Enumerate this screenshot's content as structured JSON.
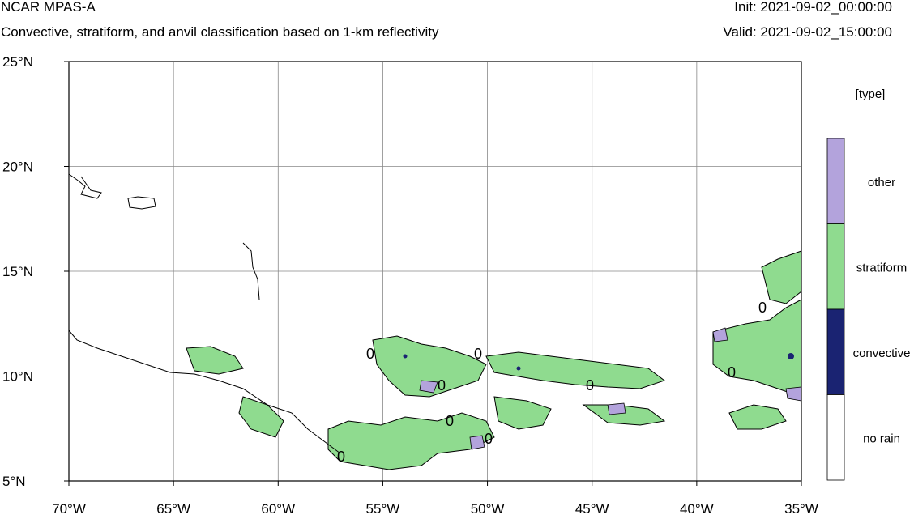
{
  "header": {
    "title": "NCAR MPAS-A",
    "subtitle": "Convective, stratiform, and anvil classification based on 1-km reflectivity",
    "init": "Init: 2021-09-02_00:00:00",
    "valid": "Valid: 2021-09-02_15:00:00"
  },
  "map": {
    "lat_ticks": [
      "25°N",
      "20°N",
      "15°N",
      "10°N",
      "5°N"
    ],
    "lon_ticks": [
      "70°W",
      "65°W",
      "60°W",
      "55°W",
      "50°W",
      "45°W",
      "40°W",
      "35°W"
    ],
    "lat_range": [
      5,
      25
    ],
    "lon_range": [
      -70,
      -35
    ],
    "contour_label": "0"
  },
  "legend": {
    "title": "[type]",
    "categories": [
      {
        "label": "other",
        "color": "#b3a3dc"
      },
      {
        "label": "stratiform",
        "color": "#8fdb8f"
      },
      {
        "label": "convective",
        "color": "#1a2372"
      },
      {
        "label": "no rain",
        "color": "#ffffff"
      }
    ]
  }
}
